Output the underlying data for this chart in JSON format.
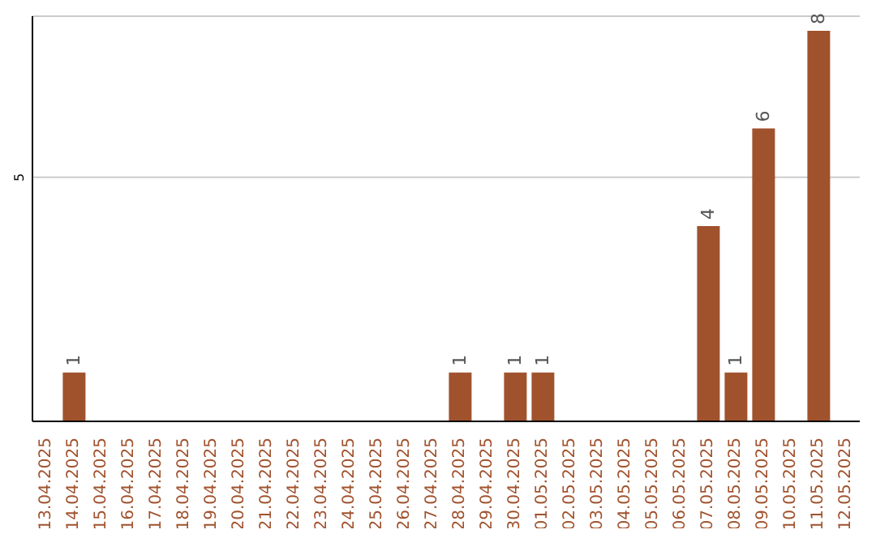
{
  "chart_data": {
    "type": "bar",
    "categories": [
      "13.04.2025",
      "14.04.2025",
      "15.04.2025",
      "16.04.2025",
      "17.04.2025",
      "18.04.2025",
      "19.04.2025",
      "20.04.2025",
      "21.04.2025",
      "22.04.2025",
      "23.04.2025",
      "24.04.2025",
      "25.04.2025",
      "26.04.2025",
      "27.04.2025",
      "28.04.2025",
      "29.04.2025",
      "30.04.2025",
      "01.05.2025",
      "02.05.2025",
      "03.05.2025",
      "04.05.2025",
      "05.05.2025",
      "06.05.2025",
      "07.05.2025",
      "08.05.2025",
      "09.05.2025",
      "10.05.2025",
      "11.05.2025",
      "12.05.2025"
    ],
    "values": [
      null,
      1,
      null,
      null,
      null,
      null,
      null,
      null,
      null,
      null,
      null,
      null,
      null,
      null,
      null,
      1,
      null,
      1,
      1,
      null,
      null,
      null,
      null,
      null,
      4,
      1,
      6,
      null,
      8,
      null
    ],
    "color": "#a0522d",
    "ylim": [
      0,
      8.3
    ],
    "yticks": [
      5
    ],
    "grid": "y",
    "data_labels": true
  }
}
